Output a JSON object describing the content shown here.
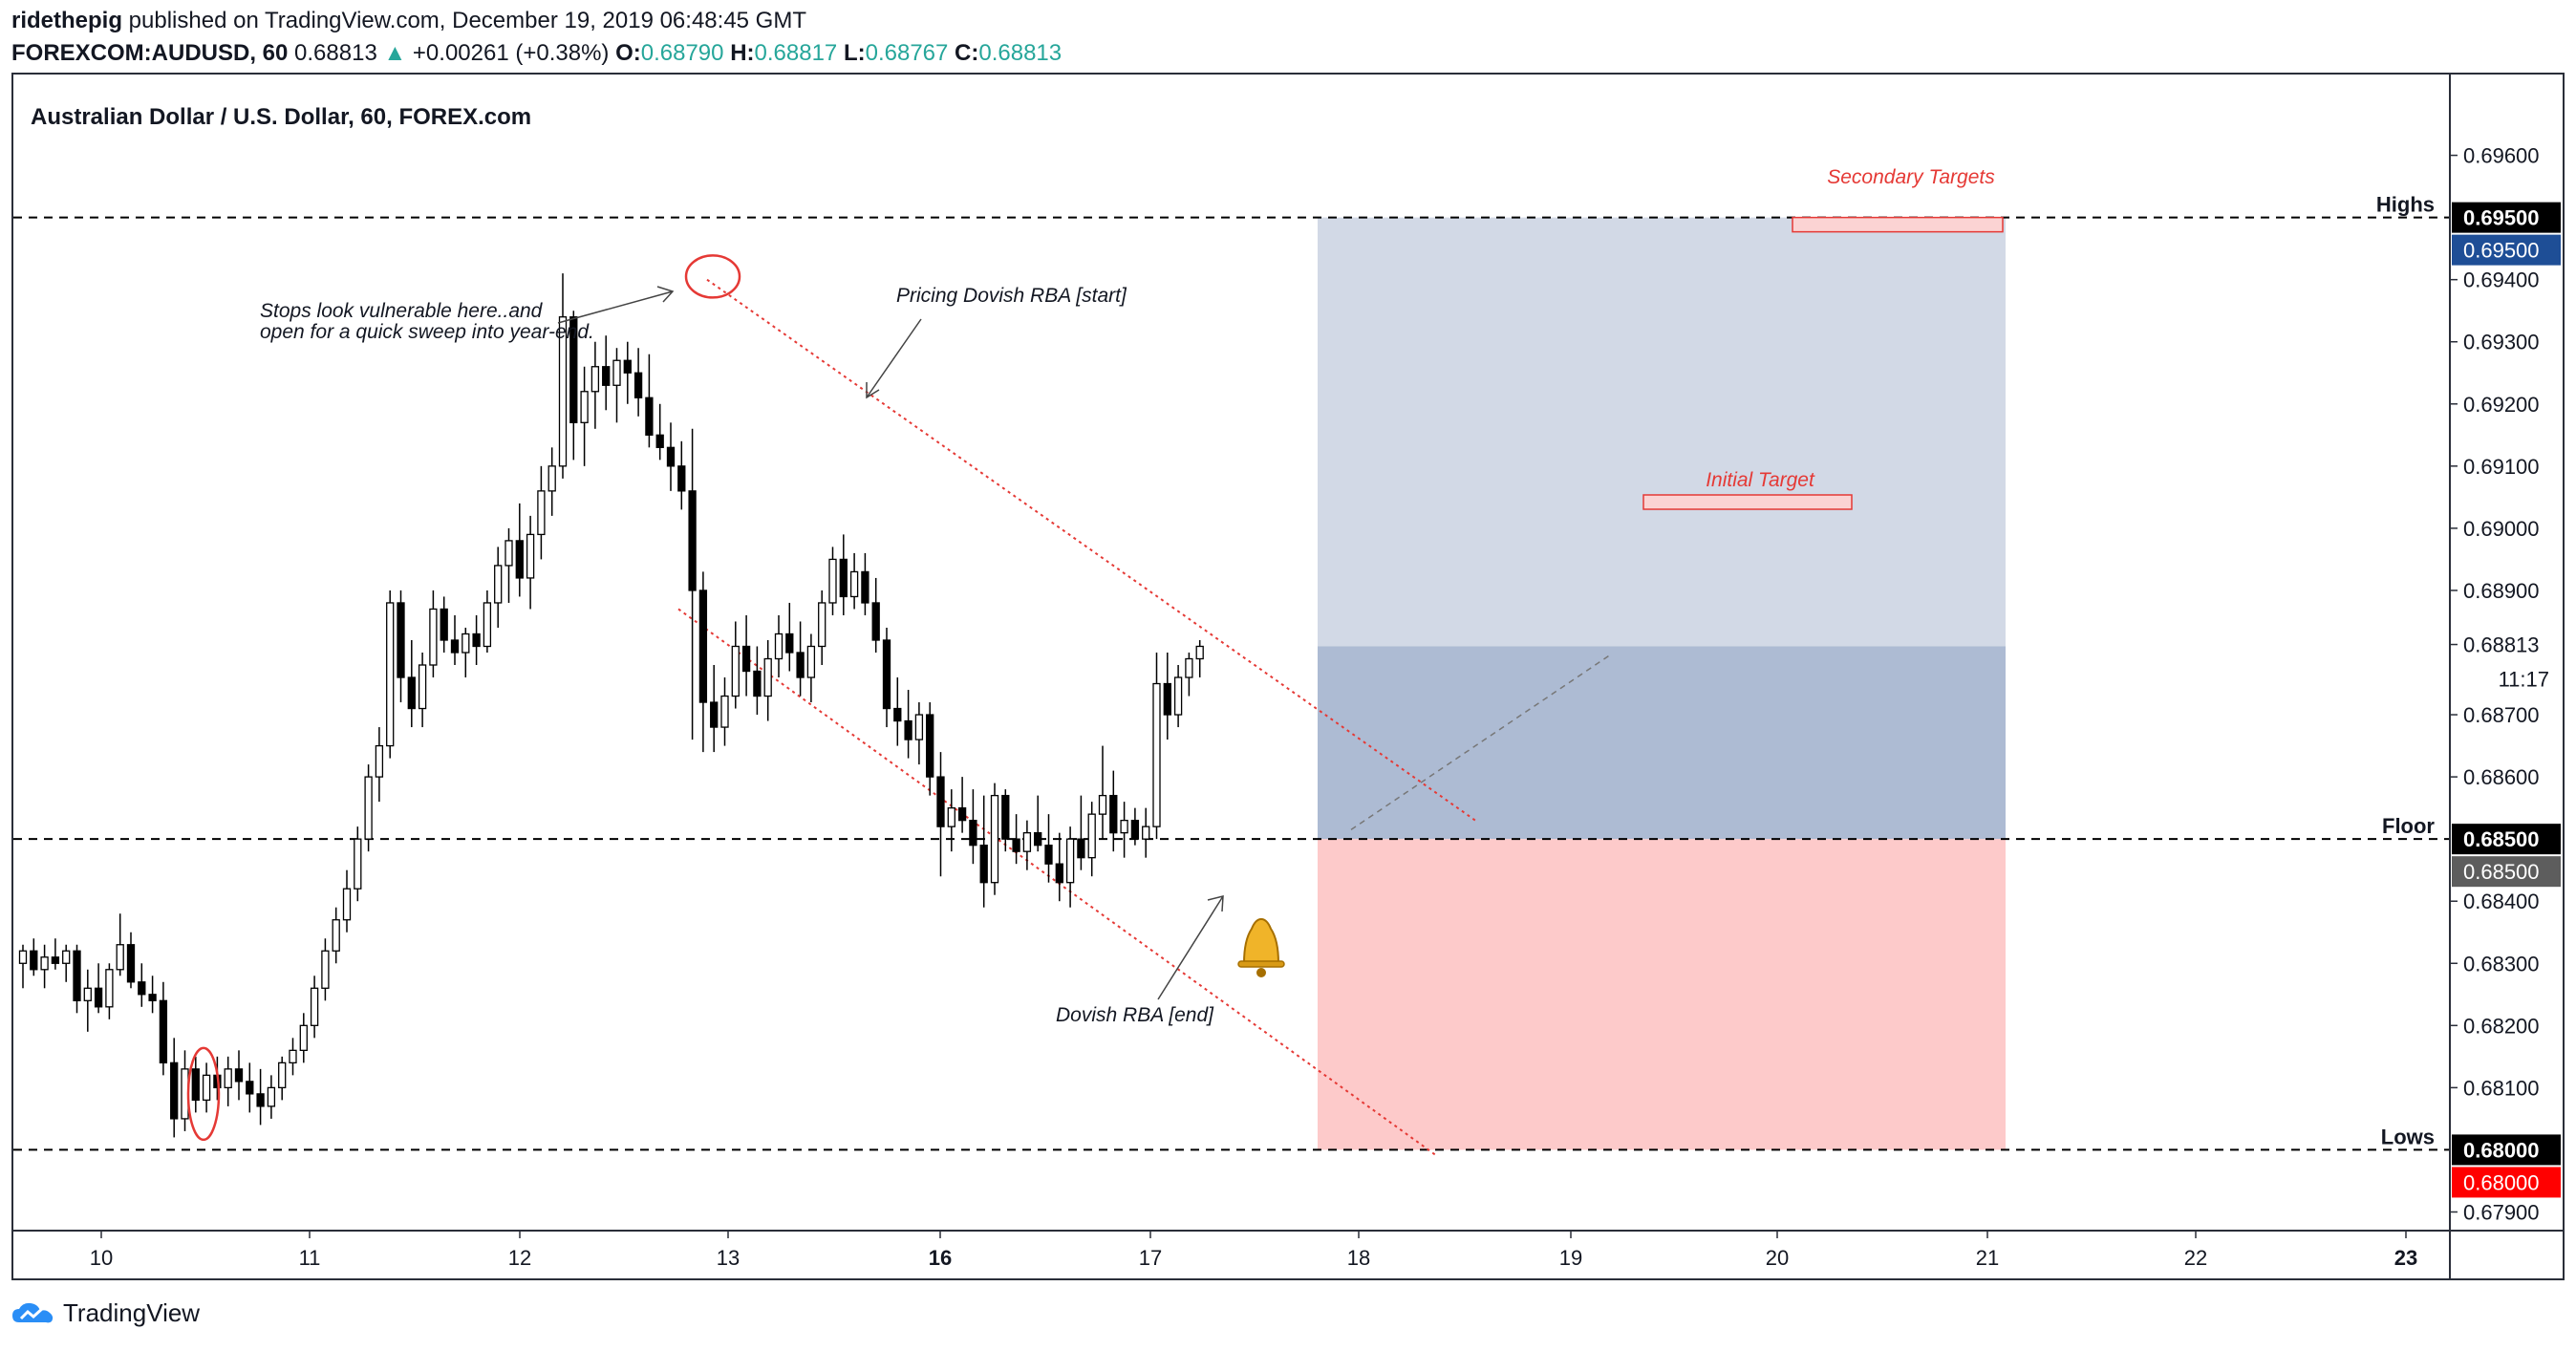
{
  "header": {
    "author": "ridethepig",
    "published": " published on TradingView.com, December 19, 2019 06:48:45 GMT",
    "symbol": "FOREXCOM:AUDUSD, 60",
    "last": "0.68813",
    "change_arrow": "▲",
    "change": "+0.00261 (+0.38%)",
    "o_label": "O:",
    "o_value": "0.68790",
    "h_label": "H:",
    "h_value": "0.68817",
    "l_label": "L:",
    "l_value": "0.68767",
    "c_label": "C:",
    "c_value": "0.68813"
  },
  "chart_data": {
    "type": "candlestick",
    "title": "Australian Dollar / U.S. Dollar, 60, FOREX.com",
    "x_days": [
      "10",
      "11",
      "12",
      "13",
      "16",
      "17",
      "18",
      "19",
      "20",
      "21",
      "22",
      "23"
    ],
    "x_bold_days": [
      "16",
      "23"
    ],
    "ylim": [
      0.6787,
      0.6973
    ],
    "y_ticks": [
      "0.69600",
      "0.69500",
      "0.69400",
      "0.69300",
      "0.69200",
      "0.69100",
      "0.69000",
      "0.68900",
      "0.68813",
      "0.68700",
      "0.68600",
      "0.68500",
      "0.68400",
      "0.68300",
      "0.68200",
      "0.68100",
      "0.68000",
      "0.67900"
    ],
    "y_tick_values": [
      0.696,
      0.695,
      0.694,
      0.693,
      0.692,
      0.691,
      0.69,
      0.689,
      0.68813,
      0.687,
      0.686,
      0.685,
      0.684,
      0.683,
      0.682,
      0.681,
      0.68,
      0.679
    ],
    "countdown": "11:17",
    "levels": [
      {
        "name": "Highs",
        "value": 0.695,
        "label": "0.69500",
        "price_label": "0.69500",
        "label_color": "#000000",
        "price_color": "#1e4e96"
      },
      {
        "name": "Floor",
        "value": 0.685,
        "label": "0.68500",
        "price_label": "0.68500",
        "label_color": "#000000",
        "price_color": "#5d5d5d"
      },
      {
        "name": "Lows",
        "value": 0.68,
        "label": "0.68000",
        "price_label": "0.68000",
        "label_color": "#000000",
        "price_color": "#ff0000"
      }
    ],
    "series_ohlc_approx": [
      [
        0.683,
        0.6833,
        0.6826,
        0.6832
      ],
      [
        0.6832,
        0.6834,
        0.6828,
        0.6829
      ],
      [
        0.6829,
        0.6833,
        0.6826,
        0.6831
      ],
      [
        0.6831,
        0.6834,
        0.6829,
        0.683
      ],
      [
        0.683,
        0.6833,
        0.6827,
        0.6832
      ],
      [
        0.6832,
        0.6833,
        0.6822,
        0.6824
      ],
      [
        0.6824,
        0.6829,
        0.6819,
        0.6826
      ],
      [
        0.6826,
        0.683,
        0.6822,
        0.6823
      ],
      [
        0.6823,
        0.683,
        0.6821,
        0.6829
      ],
      [
        0.6829,
        0.6838,
        0.6828,
        0.6833
      ],
      [
        0.6833,
        0.6835,
        0.6826,
        0.6827
      ],
      [
        0.6827,
        0.683,
        0.6823,
        0.6825
      ],
      [
        0.6825,
        0.6828,
        0.6822,
        0.6824
      ],
      [
        0.6824,
        0.6827,
        0.6812,
        0.6814
      ],
      [
        0.6814,
        0.6818,
        0.6802,
        0.6805
      ],
      [
        0.6805,
        0.6816,
        0.6803,
        0.6813
      ],
      [
        0.6813,
        0.6815,
        0.6806,
        0.6808
      ],
      [
        0.6808,
        0.6814,
        0.6806,
        0.6812
      ],
      [
        0.6812,
        0.6815,
        0.6808,
        0.681
      ],
      [
        0.681,
        0.6815,
        0.6807,
        0.6813
      ],
      [
        0.6813,
        0.6816,
        0.6808,
        0.6811
      ],
      [
        0.6811,
        0.6814,
        0.6806,
        0.6809
      ],
      [
        0.6809,
        0.6813,
        0.6804,
        0.6807
      ],
      [
        0.6807,
        0.6812,
        0.6805,
        0.681
      ],
      [
        0.681,
        0.6815,
        0.6808,
        0.6814
      ],
      [
        0.6814,
        0.6818,
        0.6812,
        0.6816
      ],
      [
        0.6816,
        0.6822,
        0.6814,
        0.682
      ],
      [
        0.682,
        0.6828,
        0.6818,
        0.6826
      ],
      [
        0.6826,
        0.6834,
        0.6824,
        0.6832
      ],
      [
        0.6832,
        0.6839,
        0.683,
        0.6837
      ],
      [
        0.6837,
        0.6845,
        0.6835,
        0.6842
      ],
      [
        0.6842,
        0.6852,
        0.684,
        0.685
      ],
      [
        0.685,
        0.6862,
        0.6848,
        0.686
      ],
      [
        0.686,
        0.6868,
        0.6856,
        0.6865
      ],
      [
        0.6865,
        0.689,
        0.6863,
        0.6888
      ],
      [
        0.6888,
        0.689,
        0.6872,
        0.6876
      ],
      [
        0.6876,
        0.6882,
        0.6868,
        0.6871
      ],
      [
        0.6871,
        0.688,
        0.6868,
        0.6878
      ],
      [
        0.6878,
        0.689,
        0.6876,
        0.6887
      ],
      [
        0.6887,
        0.6889,
        0.688,
        0.6882
      ],
      [
        0.6882,
        0.6886,
        0.6878,
        0.688
      ],
      [
        0.688,
        0.6884,
        0.6876,
        0.6883
      ],
      [
        0.6883,
        0.6886,
        0.6878,
        0.6881
      ],
      [
        0.6881,
        0.689,
        0.688,
        0.6888
      ],
      [
        0.6888,
        0.6897,
        0.6884,
        0.6894
      ],
      [
        0.6894,
        0.69,
        0.6888,
        0.6898
      ],
      [
        0.6898,
        0.6904,
        0.6889,
        0.6892
      ],
      [
        0.6892,
        0.6902,
        0.6887,
        0.6899
      ],
      [
        0.6899,
        0.691,
        0.6895,
        0.6906
      ],
      [
        0.6906,
        0.6913,
        0.6902,
        0.691
      ],
      [
        0.691,
        0.6941,
        0.6908,
        0.6934
      ],
      [
        0.6934,
        0.6935,
        0.6911,
        0.6917
      ],
      [
        0.6917,
        0.6926,
        0.691,
        0.6922
      ],
      [
        0.6922,
        0.693,
        0.6916,
        0.6926
      ],
      [
        0.6926,
        0.6931,
        0.6919,
        0.6923
      ],
      [
        0.6923,
        0.6929,
        0.6917,
        0.6927
      ],
      [
        0.6927,
        0.693,
        0.692,
        0.6925
      ],
      [
        0.6925,
        0.6929,
        0.6918,
        0.6921
      ],
      [
        0.6921,
        0.6928,
        0.6913,
        0.6915
      ],
      [
        0.6915,
        0.692,
        0.6911,
        0.6913
      ],
      [
        0.6913,
        0.6917,
        0.6906,
        0.691
      ],
      [
        0.691,
        0.6914,
        0.6903,
        0.6906
      ],
      [
        0.6906,
        0.6916,
        0.6866,
        0.689
      ],
      [
        0.689,
        0.6893,
        0.6864,
        0.6872
      ],
      [
        0.6872,
        0.6878,
        0.6864,
        0.6868
      ],
      [
        0.6868,
        0.6876,
        0.6865,
        0.6873
      ],
      [
        0.6873,
        0.6885,
        0.6871,
        0.6881
      ],
      [
        0.6881,
        0.6886,
        0.6873,
        0.6877
      ],
      [
        0.6877,
        0.6881,
        0.687,
        0.6873
      ],
      [
        0.6873,
        0.6882,
        0.6869,
        0.6879
      ],
      [
        0.6879,
        0.6886,
        0.6876,
        0.6883
      ],
      [
        0.6883,
        0.6888,
        0.6877,
        0.688
      ],
      [
        0.688,
        0.6885,
        0.6873,
        0.6876
      ],
      [
        0.6876,
        0.6883,
        0.6872,
        0.6881
      ],
      [
        0.6881,
        0.689,
        0.6878,
        0.6888
      ],
      [
        0.6888,
        0.6897,
        0.6886,
        0.6895
      ],
      [
        0.6895,
        0.6899,
        0.6886,
        0.6889
      ],
      [
        0.6889,
        0.6896,
        0.6887,
        0.6893
      ],
      [
        0.6893,
        0.6896,
        0.6886,
        0.6888
      ],
      [
        0.6888,
        0.6892,
        0.688,
        0.6882
      ],
      [
        0.6882,
        0.6884,
        0.6868,
        0.6871
      ],
      [
        0.6871,
        0.6876,
        0.6865,
        0.6869
      ],
      [
        0.6869,
        0.6874,
        0.6863,
        0.6866
      ],
      [
        0.6866,
        0.6872,
        0.6862,
        0.687
      ],
      [
        0.687,
        0.6872,
        0.6857,
        0.686
      ],
      [
        0.686,
        0.6864,
        0.6844,
        0.6852
      ],
      [
        0.6852,
        0.6858,
        0.6848,
        0.6855
      ],
      [
        0.6855,
        0.686,
        0.6851,
        0.6853
      ],
      [
        0.6853,
        0.6858,
        0.6846,
        0.6849
      ],
      [
        0.6849,
        0.6857,
        0.6839,
        0.6843
      ],
      [
        0.6843,
        0.6859,
        0.6841,
        0.6857
      ],
      [
        0.6857,
        0.6858,
        0.6848,
        0.685
      ],
      [
        0.685,
        0.6854,
        0.6846,
        0.6848
      ],
      [
        0.6848,
        0.6853,
        0.6845,
        0.6851
      ],
      [
        0.6851,
        0.6857,
        0.6848,
        0.6849
      ],
      [
        0.6849,
        0.6854,
        0.6843,
        0.6846
      ],
      [
        0.6846,
        0.6851,
        0.684,
        0.6843
      ],
      [
        0.6843,
        0.6852,
        0.6839,
        0.685
      ],
      [
        0.685,
        0.6857,
        0.6845,
        0.6847
      ],
      [
        0.6847,
        0.6856,
        0.6844,
        0.6854
      ],
      [
        0.6854,
        0.6865,
        0.685,
        0.6857
      ],
      [
        0.6857,
        0.6861,
        0.6848,
        0.6851
      ],
      [
        0.6851,
        0.6856,
        0.6847,
        0.6853
      ],
      [
        0.6853,
        0.6855,
        0.6849,
        0.685
      ],
      [
        0.685,
        0.6855,
        0.6847,
        0.6852
      ],
      [
        0.6852,
        0.688,
        0.685,
        0.6875
      ],
      [
        0.6875,
        0.688,
        0.6866,
        0.687
      ],
      [
        0.687,
        0.6878,
        0.6868,
        0.6876
      ],
      [
        0.6876,
        0.688,
        0.6873,
        0.6879
      ],
      [
        0.6879,
        0.6882,
        0.6876,
        0.6881
      ]
    ],
    "annotations": [
      {
        "text": "Stops look vulnerable here..and",
        "kind": "note"
      },
      {
        "text": "open for a quick sweep into year-end.",
        "kind": "note"
      },
      {
        "text": "Pricing Dovish RBA [start]",
        "kind": "note"
      },
      {
        "text": "Dovish RBA [end]",
        "kind": "note"
      },
      {
        "text": "Secondary Targets",
        "kind": "target"
      },
      {
        "text": "Initial Target",
        "kind": "target"
      }
    ],
    "position": {
      "entry": 0.685,
      "stop": 0.68,
      "target1": 0.6881,
      "target2": 0.695
    },
    "colors": {
      "up": "#ffffff",
      "down": "#000000",
      "target_light": "#d2d9e6",
      "target_dark": "#adbbd3",
      "stop": "#fdcaca",
      "accent": "#e53935"
    }
  },
  "footer": {
    "brand": "TradingView"
  }
}
